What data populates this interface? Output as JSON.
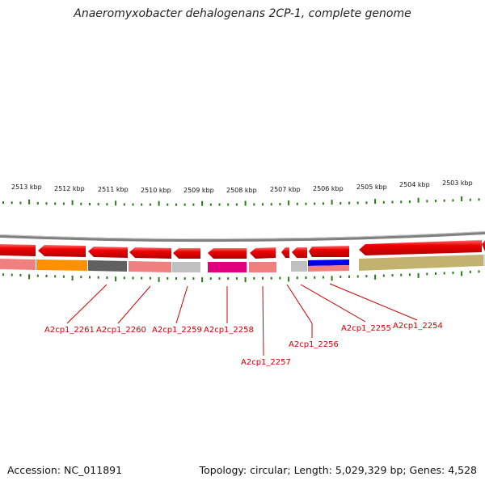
{
  "title": "Anaeromyxobacter dehalogenans 2CP-1, complete genome",
  "accession": "Accession: NC_011891",
  "summary": "Topology: circular; Length: 5,029,329 bp; Genes: 4,528",
  "kbp_labels": [
    "2513 kbp",
    "2512 kbp",
    "2511 kbp",
    "2510 kbp",
    "2509 kbp",
    "2508 kbp",
    "2507 kbp",
    "2506 kbp",
    "2505 kbp",
    "2504 kbp",
    "2503 kbp"
  ],
  "genes": [
    {
      "name": "A2cp1_2261",
      "track_color": "#f08080"
    },
    {
      "name": "A2cp1_2260",
      "track_color": "#ff9000"
    },
    {
      "name": "A2cp1_2259",
      "track_color": "#606060"
    },
    {
      "name": "A2cp1_2258",
      "track_color": "#f08080"
    },
    {
      "name": "A2cp1_2257",
      "track_color": "#c0c0c0"
    },
    {
      "name": "A2cp1_2256",
      "track_color": "#e0007f"
    },
    {
      "name": "A2cp1_2255",
      "track_color": "#f08080"
    },
    {
      "name": "A2cp1_2254",
      "track_color": "#0000ee"
    }
  ],
  "colors": {
    "cds": "#ee0000",
    "backbone": "#808080",
    "ticks": "#2a7a1a",
    "label": "#cc0000",
    "olive": "#c2b270"
  }
}
